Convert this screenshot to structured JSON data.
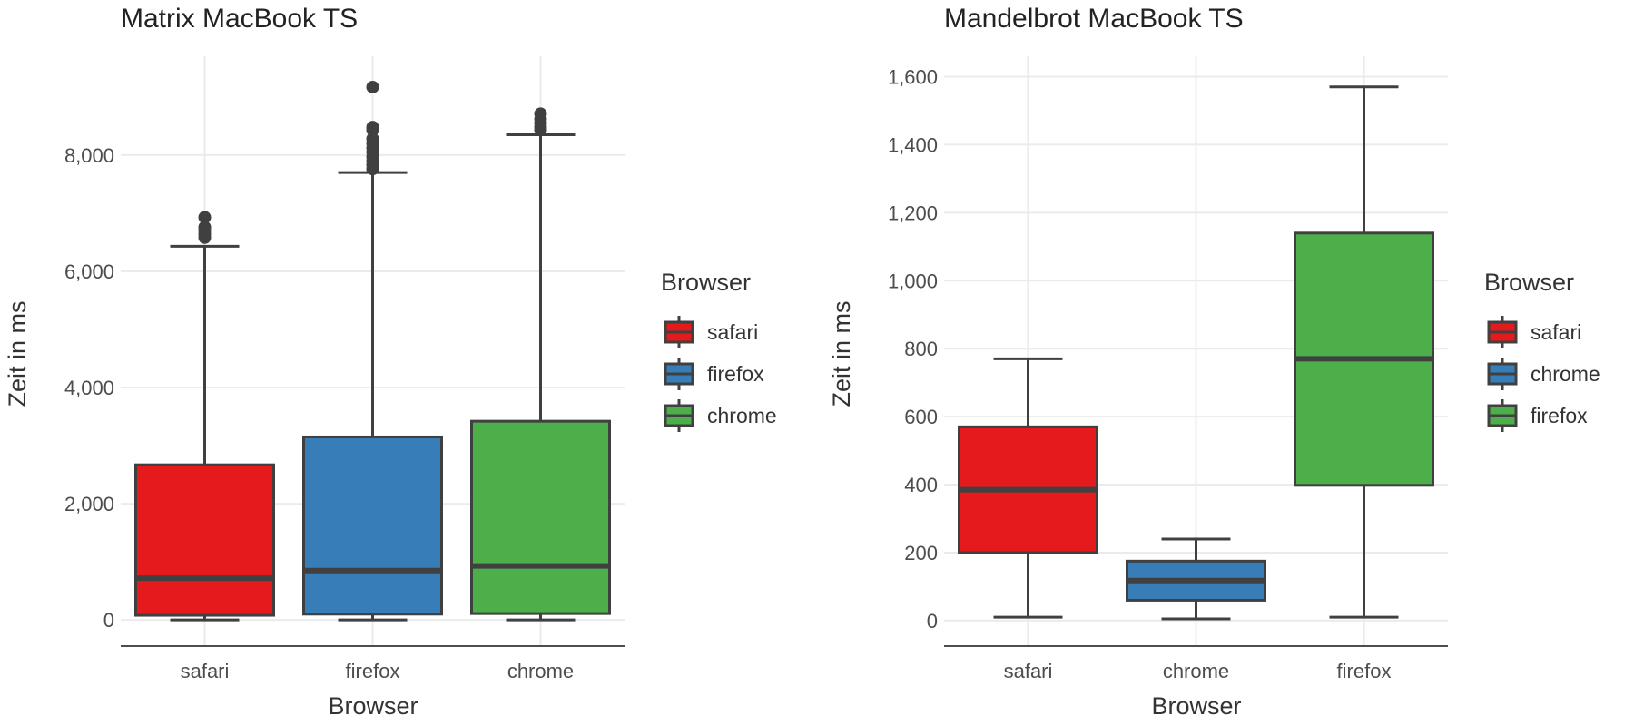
{
  "colors": {
    "red": "#e41a1c",
    "blue": "#377eb8",
    "green": "#4daf4a",
    "outline": "#404040"
  },
  "chart_data": [
    {
      "type": "boxplot",
      "title": "Matrix MacBook TS",
      "xlabel": "Browser",
      "ylabel": "Zeit in ms",
      "ylim": [
        -450,
        9700
      ],
      "yticks": [
        0,
        2000,
        4000,
        6000,
        8000
      ],
      "ytick_labels": [
        "0",
        "2,000",
        "4,000",
        "6,000",
        "8,000"
      ],
      "grid": true,
      "legend": {
        "title": "Browser",
        "position": "right"
      },
      "categories": [
        "safari",
        "firefox",
        "chrome"
      ],
      "boxes": [
        {
          "name": "safari",
          "color": "#e41a1c",
          "min": 0,
          "q1": 80,
          "median": 720,
          "q3": 2670,
          "max": 6430,
          "outliers": [
            6580,
            6640,
            6700,
            6760,
            6930
          ]
        },
        {
          "name": "firefox",
          "color": "#377eb8",
          "min": 0,
          "q1": 100,
          "median": 850,
          "q3": 3150,
          "max": 7700,
          "outliers": [
            7760,
            7830,
            7900,
            7970,
            8050,
            8120,
            8200,
            8280,
            8430,
            8480,
            9170
          ]
        },
        {
          "name": "chrome",
          "color": "#4daf4a",
          "min": 0,
          "q1": 110,
          "median": 930,
          "q3": 3420,
          "max": 8350,
          "outliers": [
            8430,
            8480,
            8550,
            8620,
            8710
          ]
        }
      ]
    },
    {
      "type": "boxplot",
      "title": "Mandelbrot MacBook TS",
      "xlabel": "Browser",
      "ylabel": "Zeit in ms",
      "ylim": [
        -75,
        1660
      ],
      "yticks": [
        0,
        200,
        400,
        600,
        800,
        1000,
        1200,
        1400,
        1600
      ],
      "ytick_labels": [
        "0",
        "200",
        "400",
        "600",
        "800",
        "1,000",
        "1,200",
        "1,400",
        "1,600"
      ],
      "grid": true,
      "legend": {
        "title": "Browser",
        "position": "right"
      },
      "categories": [
        "safari",
        "chrome",
        "firefox"
      ],
      "boxes": [
        {
          "name": "safari",
          "color": "#e41a1c",
          "min": 10,
          "q1": 200,
          "median": 385,
          "q3": 570,
          "max": 770,
          "outliers": []
        },
        {
          "name": "chrome",
          "color": "#377eb8",
          "min": 5,
          "q1": 60,
          "median": 118,
          "q3": 175,
          "max": 240,
          "outliers": []
        },
        {
          "name": "firefox",
          "color": "#4daf4a",
          "min": 10,
          "q1": 398,
          "median": 770,
          "q3": 1140,
          "max": 1570,
          "outliers": []
        }
      ]
    }
  ]
}
